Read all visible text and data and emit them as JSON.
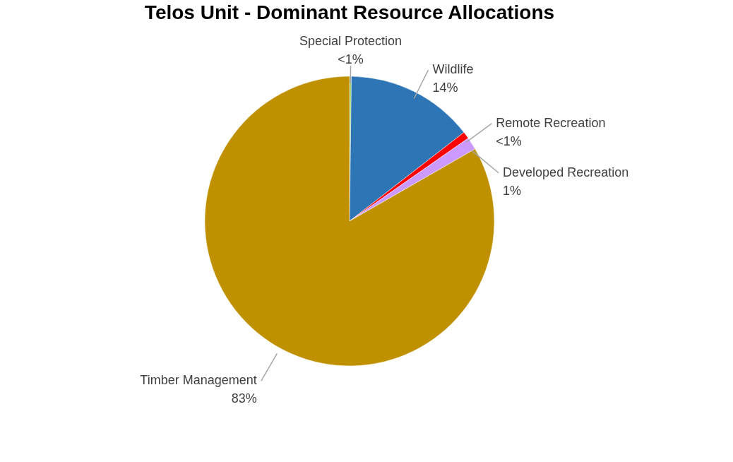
{
  "chart_data": {
    "type": "pie",
    "title": "Telos Unit - Dominant Resource Allocations",
    "categories": [
      "Special Protection",
      "Wildlife",
      "Remote Recreation",
      "Developed Recreation",
      "Timber Management"
    ],
    "values": [
      0.2,
      14.3,
      0.8,
      1.4,
      83.3
    ],
    "value_labels": [
      "<1%",
      "14%",
      "<1%",
      "1%",
      "83%"
    ],
    "colors": [
      "#92d050",
      "#2e75b6",
      "#ff0000",
      "#cc99ff",
      "#bf9000"
    ],
    "legend": false
  }
}
